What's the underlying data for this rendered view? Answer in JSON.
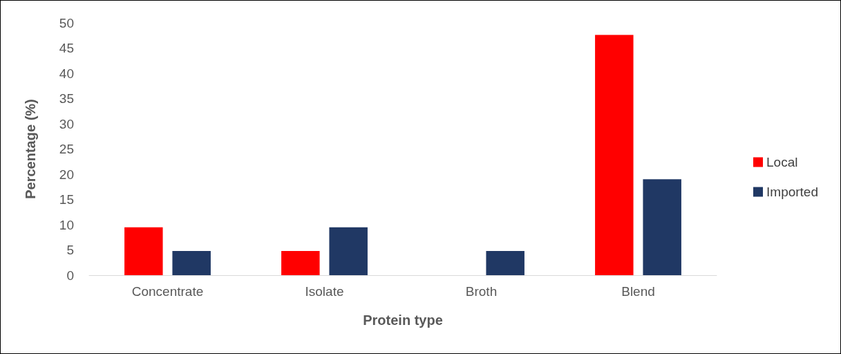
{
  "chart_data": {
    "type": "bar",
    "xlabel": "Protein type",
    "ylabel": "Percentage (%)",
    "categories": [
      "Concentrate",
      "Isolate",
      "Broth",
      "Blend"
    ],
    "series": [
      {
        "name": "Local",
        "color": "#ff0000",
        "values": [
          9.5,
          4.8,
          0,
          47.6
        ]
      },
      {
        "name": "Imported",
        "color": "#203864",
        "values": [
          4.8,
          9.5,
          4.8,
          19.0
        ]
      }
    ],
    "ylim": [
      0,
      50
    ],
    "yticks": [
      0,
      5,
      10,
      15,
      20,
      25,
      30,
      35,
      40,
      45,
      50
    ],
    "grid": false,
    "legend": "right"
  }
}
